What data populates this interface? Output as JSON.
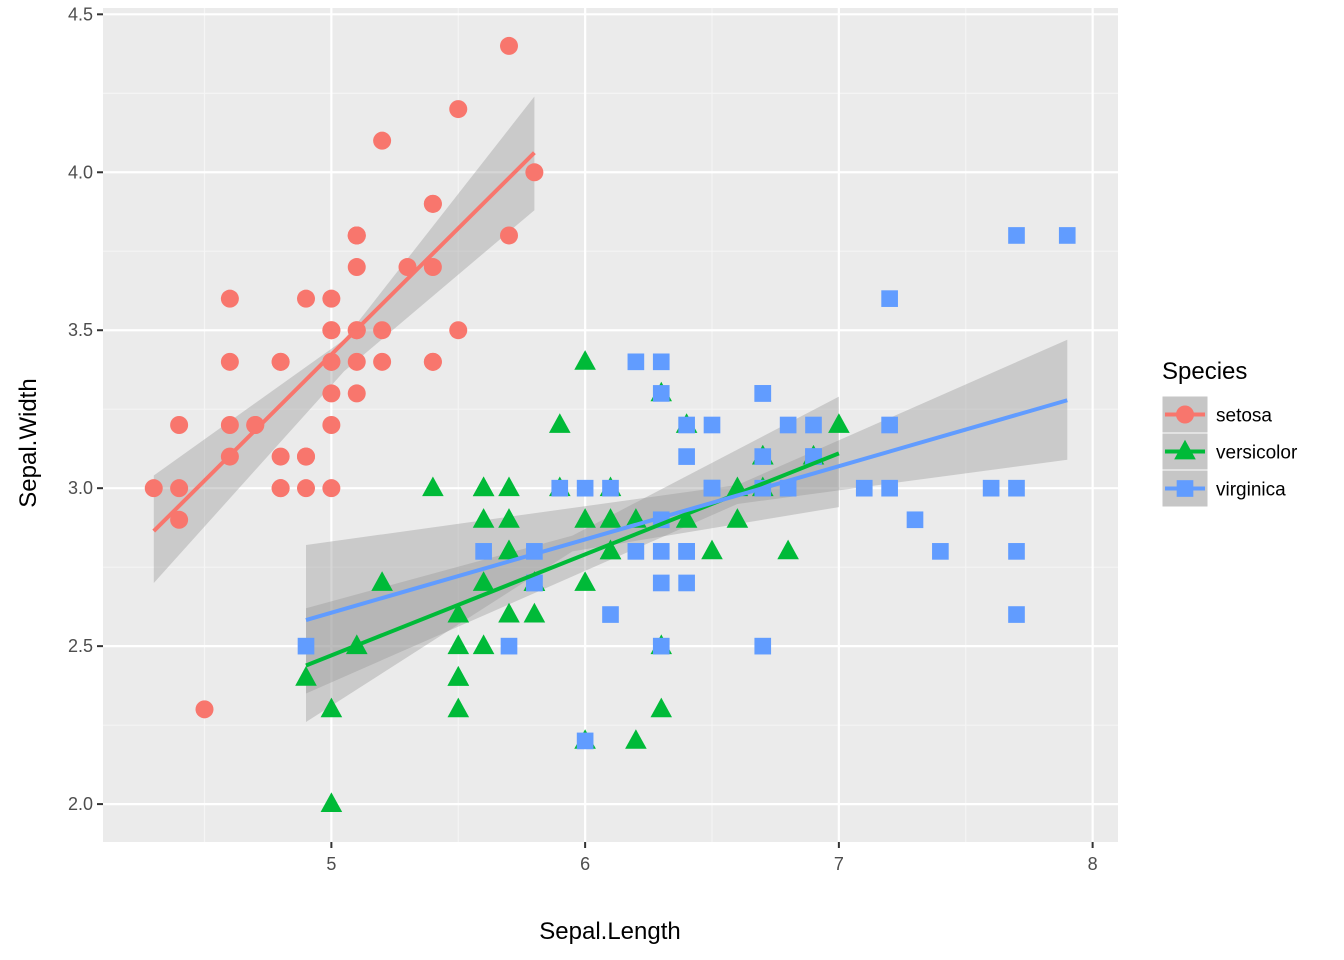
{
  "chart_data": {
    "type": "scatter",
    "xlabel": "Sepal.Length",
    "ylabel": "Sepal.Width",
    "xlim": [
      4.1,
      8.1
    ],
    "ylim": [
      1.88,
      4.52
    ],
    "x_ticks": [
      5,
      6,
      7,
      8
    ],
    "x_tick_labels": [
      "5",
      "6",
      "7",
      "8"
    ],
    "y_ticks": [
      2.0,
      2.5,
      3.0,
      3.5,
      4.0,
      4.5
    ],
    "y_tick_labels": [
      "2.0",
      "2.5",
      "3.0",
      "3.5",
      "4.0",
      "4.5"
    ],
    "grid": true,
    "legend": {
      "title": "Species",
      "position": "right"
    },
    "series": [
      {
        "name": "setosa",
        "color": "#F8766D",
        "shape": "circle",
        "x": [
          5.1,
          4.9,
          4.7,
          4.6,
          5.0,
          5.4,
          4.6,
          5.0,
          4.4,
          4.9,
          5.4,
          4.8,
          4.8,
          4.3,
          5.8,
          5.7,
          5.4,
          5.1,
          5.7,
          5.1,
          5.4,
          5.1,
          4.6,
          5.1,
          4.8,
          5.0,
          5.0,
          5.2,
          5.2,
          4.7,
          4.8,
          5.4,
          5.2,
          5.5,
          4.9,
          5.0,
          5.5,
          4.9,
          4.4,
          5.1,
          5.0,
          4.5,
          4.4,
          5.0,
          5.1,
          4.8,
          5.1,
          4.6,
          5.3,
          5.0
        ],
        "y": [
          3.5,
          3.0,
          3.2,
          3.1,
          3.6,
          3.9,
          3.4,
          3.4,
          2.9,
          3.1,
          3.7,
          3.4,
          3.0,
          3.0,
          4.0,
          4.4,
          3.9,
          3.5,
          3.8,
          3.8,
          3.4,
          3.7,
          3.6,
          3.3,
          3.4,
          3.0,
          3.4,
          3.5,
          3.4,
          3.2,
          3.1,
          3.4,
          4.1,
          4.2,
          3.1,
          3.2,
          3.5,
          3.6,
          3.0,
          3.4,
          3.5,
          2.3,
          3.2,
          3.5,
          3.8,
          3.0,
          3.8,
          3.2,
          3.7,
          3.3
        ],
        "fit": {
          "x_range": [
            4.3,
            5.8
          ],
          "intercept": -0.5694,
          "slope": 0.7985
        },
        "ci_band": {
          "x": [
            4.3,
            5.05,
            5.8
          ],
          "lower": [
            2.7,
            3.37,
            3.88
          ],
          "upper": [
            3.04,
            3.47,
            4.24
          ]
        }
      },
      {
        "name": "versicolor",
        "color": "#00BA38",
        "shape": "triangle",
        "x": [
          7.0,
          6.4,
          6.9,
          5.5,
          6.5,
          5.7,
          6.3,
          4.9,
          6.6,
          5.2,
          5.0,
          5.9,
          6.0,
          6.1,
          5.6,
          6.7,
          5.6,
          5.8,
          6.2,
          5.6,
          5.9,
          6.1,
          6.3,
          6.1,
          6.4,
          6.6,
          6.8,
          6.7,
          6.0,
          5.7,
          5.5,
          5.5,
          5.8,
          6.0,
          5.4,
          6.0,
          6.7,
          6.3,
          5.6,
          5.5,
          5.5,
          6.1,
          5.8,
          5.0,
          5.6,
          5.7,
          5.7,
          6.2,
          5.1,
          5.7
        ],
        "y": [
          3.2,
          3.2,
          3.1,
          2.3,
          2.8,
          2.8,
          3.3,
          2.4,
          2.9,
          2.7,
          2.0,
          3.0,
          2.2,
          2.9,
          2.9,
          3.1,
          3.0,
          2.7,
          2.2,
          2.5,
          3.2,
          2.8,
          2.5,
          2.8,
          2.9,
          3.0,
          2.8,
          3.0,
          2.9,
          2.6,
          2.4,
          2.4,
          2.7,
          2.7,
          3.0,
          3.4,
          3.1,
          2.3,
          3.0,
          2.5,
          2.6,
          3.0,
          2.6,
          2.3,
          2.7,
          3.0,
          2.9,
          2.9,
          2.5,
          2.8
        ],
        "fit": {
          "x_range": [
            4.9,
            7.0
          ],
          "intercept": 0.8723,
          "slope": 0.3197
        },
        "ci_band": {
          "x": [
            4.9,
            5.95,
            7.0
          ],
          "lower": [
            2.26,
            2.8,
            2.94
          ],
          "upper": [
            2.62,
            2.85,
            3.29
          ]
        }
      },
      {
        "name": "virginica",
        "color": "#619CFF",
        "shape": "square",
        "x": [
          6.3,
          5.8,
          7.1,
          6.3,
          6.5,
          7.6,
          4.9,
          7.3,
          6.7,
          7.2,
          6.5,
          6.4,
          6.8,
          5.7,
          5.8,
          6.4,
          6.5,
          7.7,
          7.7,
          6.0,
          6.9,
          5.6,
          7.7,
          6.3,
          6.7,
          7.2,
          6.2,
          6.1,
          6.4,
          7.2,
          7.4,
          7.9,
          6.4,
          6.3,
          6.1,
          7.7,
          6.3,
          6.4,
          6.0,
          6.9,
          6.7,
          6.9,
          5.8,
          6.8,
          6.7,
          6.7,
          6.3,
          6.5,
          6.2,
          5.9
        ],
        "y": [
          3.3,
          2.7,
          3.0,
          2.9,
          3.0,
          3.0,
          2.5,
          2.9,
          2.5,
          3.6,
          3.2,
          2.7,
          3.0,
          2.5,
          2.8,
          3.2,
          3.0,
          3.8,
          2.6,
          2.2,
          3.2,
          2.8,
          2.8,
          2.7,
          3.3,
          3.2,
          2.8,
          3.0,
          2.8,
          3.0,
          2.8,
          3.8,
          2.8,
          2.8,
          2.6,
          3.0,
          3.4,
          3.1,
          3.0,
          3.1,
          3.1,
          3.1,
          2.7,
          3.2,
          3.3,
          3.0,
          2.5,
          3.0,
          3.4,
          3.0
        ],
        "fit": {
          "x_range": [
            4.9,
            7.9
          ],
          "intercept": 1.4463,
          "slope": 0.2319
        },
        "ci_band": {
          "x": [
            4.9,
            6.6,
            7.9
          ],
          "lower": [
            2.35,
            2.95,
            3.09
          ],
          "upper": [
            2.82,
            3.01,
            3.47
          ]
        }
      }
    ]
  }
}
